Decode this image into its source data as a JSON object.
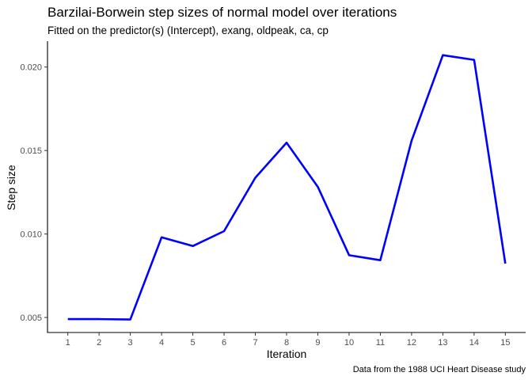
{
  "chart_data": {
    "type": "line",
    "title": "Barzilai-Borwein step sizes of normal model over iterations",
    "subtitle": "Fitted on the predictor(s) (Intercept), exang, oldpeak, ca, cp",
    "caption": "Data from the 1988 UCI Heart Disease study",
    "xlabel": "Iteration",
    "ylabel": "Step size",
    "x": [
      1,
      2,
      3,
      4,
      5,
      6,
      7,
      8,
      9,
      10,
      11,
      12,
      13,
      14,
      15
    ],
    "series": [
      {
        "values": [
          0.0049,
          0.0049,
          0.00488,
          0.0098,
          0.00928,
          0.01017,
          0.01337,
          0.01547,
          0.01282,
          0.00873,
          0.00843,
          0.01559,
          0.02071,
          0.02043,
          0.00823
        ],
        "color": "#0000ff"
      }
    ],
    "xticks": [
      "1",
      "2",
      "3",
      "4",
      "5",
      "6",
      "7",
      "8",
      "9",
      "10",
      "11",
      "12",
      "13",
      "14",
      "15"
    ],
    "yticks": [
      "0.005",
      "0.010",
      "0.015",
      "0.020"
    ],
    "ytick_values": [
      0.005,
      0.01,
      0.015,
      0.02
    ],
    "xlim": [
      0.35,
      15.65
    ],
    "ylim": [
      0.0041,
      0.02155
    ],
    "grid": false,
    "legend": "none"
  }
}
